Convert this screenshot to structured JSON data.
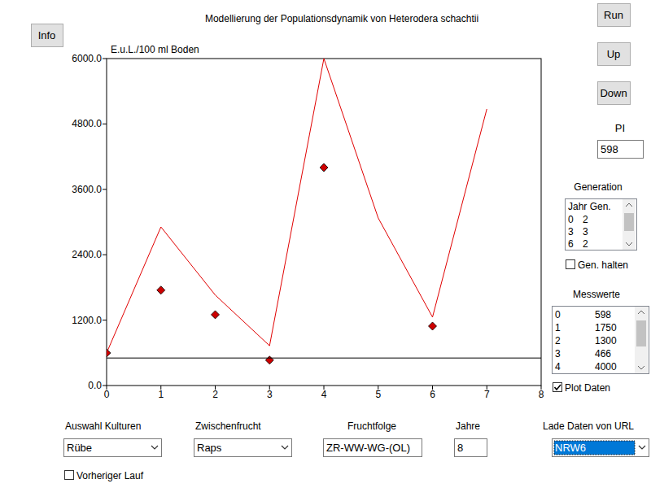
{
  "window": {
    "buttons": {
      "info": "Info",
      "run": "Run",
      "up": "Up",
      "down": "Down"
    }
  },
  "chart_data": {
    "type": "line",
    "title": "Modellierung der Populationsdynamik von Heterodera schachtii",
    "y_label": "E.u.L./100 ml Boden",
    "xlim": [
      0,
      8
    ],
    "ylim": [
      0,
      6000
    ],
    "xticks": [
      0,
      1,
      2,
      3,
      4,
      5,
      6,
      7,
      8
    ],
    "yticks": [
      {
        "value": 0,
        "label": "0.0"
      },
      {
        "value": 1200,
        "label": "1200.0"
      },
      {
        "value": 2400,
        "label": "2400.0"
      },
      {
        "value": 3600,
        "label": "3600.0"
      },
      {
        "value": 4800,
        "label": "4800.0"
      },
      {
        "value": 6000,
        "label": "6000.0"
      }
    ],
    "series": [
      {
        "type": "line",
        "color": "#e00000",
        "x": [
          0,
          1,
          2,
          3,
          4,
          5,
          6,
          7
        ],
        "values": [
          598,
          2910,
          1660,
          730,
          6000,
          3075,
          1255,
          5075
        ]
      },
      {
        "type": "scatter",
        "color": "#cc0000",
        "marker": "diamond",
        "x": [
          0,
          1,
          2,
          3,
          4,
          6
        ],
        "values": [
          598,
          1750,
          1300,
          466,
          4000,
          1090
        ]
      },
      {
        "type": "line",
        "color": "#000000",
        "x": [
          0,
          8
        ],
        "values": [
          505,
          505
        ]
      }
    ]
  },
  "controls": {
    "pi": {
      "label": "PI",
      "value": 598
    },
    "generation": {
      "label": "Generation",
      "header": "Jahr Gen.",
      "rows": [
        [
          0,
          2
        ],
        [
          3,
          3
        ],
        [
          6,
          2
        ]
      ],
      "hold": {
        "label": "Gen. halten",
        "checked": false
      }
    },
    "measurements": {
      "label": "Messwerte",
      "plot": {
        "label": "Plot Daten",
        "checked": true
      }
    },
    "crops": {
      "label": "Auswahl Kulturen",
      "value": "Rübe"
    },
    "catch_crop": {
      "label": "Zwischenfrucht",
      "value": "Raps"
    },
    "rotation": {
      "label": "Fruchtfolge",
      "value": "ZR-WW-WG-(OL)"
    },
    "years": {
      "label": "Jahre",
      "value": 8
    },
    "url": {
      "label": "Lade Daten von URL",
      "value": "NRW6"
    },
    "previous_run": {
      "label": "Vorheriger Lauf",
      "checked": false
    }
  }
}
